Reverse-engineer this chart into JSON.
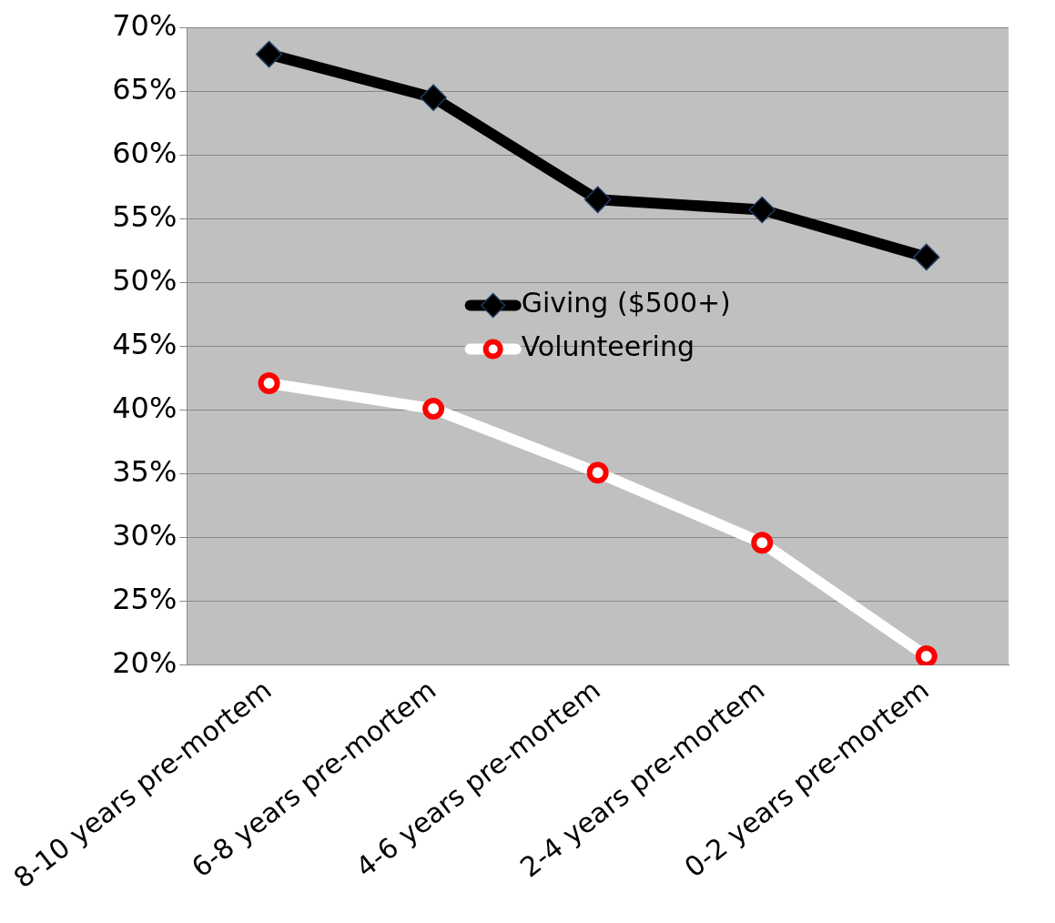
{
  "chart_data": {
    "type": "line",
    "categories": [
      "8-10 years pre-mortem",
      "6-8 years pre-mortem",
      "4-6 years pre-mortem",
      "2-4 years pre-mortem",
      "0-2 years pre-mortem"
    ],
    "series": [
      {
        "name": "Giving ($500+)",
        "color": "#000000",
        "marker": "diamond",
        "values": [
          67.9,
          64.5,
          56.5,
          55.7,
          52.0
        ]
      },
      {
        "name": "Volunteering",
        "color": "#ffffff",
        "marker": "circle",
        "values": [
          42.1,
          40.1,
          35.1,
          29.6,
          20.7
        ]
      }
    ],
    "ylim": [
      20,
      70
    ],
    "yticks": [
      {
        "value": 20,
        "label": "20%"
      },
      {
        "value": 25,
        "label": "25%"
      },
      {
        "value": 30,
        "label": "30%"
      },
      {
        "value": 35,
        "label": "35%"
      },
      {
        "value": 40,
        "label": "40%"
      },
      {
        "value": 45,
        "label": "45%"
      },
      {
        "value": 50,
        "label": "50%"
      },
      {
        "value": 55,
        "label": "55%"
      },
      {
        "value": 60,
        "label": "60%"
      },
      {
        "value": 65,
        "label": "65%"
      },
      {
        "value": 70,
        "label": "70%"
      }
    ],
    "grid": "y",
    "legend": "center",
    "line_style": "solid"
  }
}
